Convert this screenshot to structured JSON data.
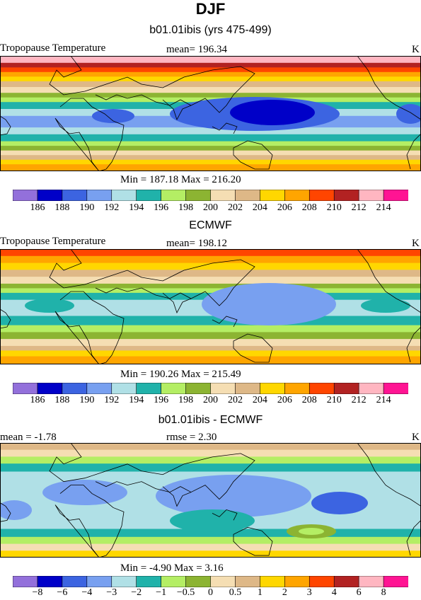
{
  "page": {
    "title": "DJF"
  },
  "colors": {
    "temp_scale": [
      "#9370db",
      "#0000c8",
      "#3c64e1",
      "#78a0f0",
      "#b0e0e6",
      "#20b2aa",
      "#b4ee64",
      "#8cb432",
      "#f5deb3",
      "#deb887",
      "#ffd700",
      "#ffa500",
      "#ff4500",
      "#b22222",
      "#ffb6c1",
      "#ff1493"
    ],
    "diff_scale": [
      "#9370db",
      "#0000c8",
      "#3c64e1",
      "#78a0f0",
      "#b0e0e6",
      "#20b2aa",
      "#b4ee64",
      "#8cb432",
      "#f5deb3",
      "#deb887",
      "#ffd700",
      "#ffa500",
      "#ff4500",
      "#b22222",
      "#ffb6c1",
      "#ff1493"
    ]
  },
  "chart_data": [
    {
      "type": "heatmap",
      "title": "b01.01ibis (yrs 475-499)",
      "left_label": "Tropopause Temperature",
      "mean_label": "mean= 196.34",
      "units": "K",
      "min_max_label": "Min = 187.18 Max = 216.20",
      "min": 187.18,
      "max": 216.2,
      "mean": 196.34,
      "levels": [
        186,
        188,
        190,
        192,
        194,
        196,
        198,
        200,
        202,
        204,
        206,
        208,
        210,
        212,
        214
      ],
      "level_labels": [
        "186",
        "188",
        "190",
        "192",
        "194",
        "196",
        "198",
        "200",
        "202",
        "204",
        "206",
        "208",
        "210",
        "212",
        "214"
      ]
    },
    {
      "type": "heatmap",
      "title": "ECMWF",
      "left_label": "Tropopause Temperature",
      "mean_label": "mean= 198.12",
      "units": "K",
      "min_max_label": "Min = 190.26 Max = 215.49",
      "min": 190.26,
      "max": 215.49,
      "mean": 198.12,
      "levels": [
        186,
        188,
        190,
        192,
        194,
        196,
        198,
        200,
        202,
        204,
        206,
        208,
        210,
        212,
        214
      ],
      "level_labels": [
        "186",
        "188",
        "190",
        "192",
        "194",
        "196",
        "198",
        "200",
        "202",
        "204",
        "206",
        "208",
        "210",
        "212",
        "214"
      ]
    },
    {
      "type": "heatmap",
      "title": "b01.01ibis - ECMWF",
      "left_label": "mean =   -1.78",
      "mean_label": "rmse =    2.30",
      "units": "K",
      "min_max_label": "Min =   -4.90 Max =    3.16",
      "min": -4.9,
      "max": 3.16,
      "mean": -1.78,
      "rmse": 2.3,
      "levels": [
        -8,
        -6,
        -4,
        -3,
        -2,
        -1,
        -0.5,
        0,
        0.5,
        1,
        2,
        3,
        4,
        6,
        8
      ],
      "level_labels": [
        "−8",
        "−6",
        "−4",
        "−3",
        "−2",
        "−1",
        "−0.5",
        "0",
        "0.5",
        "1",
        "2",
        "3",
        "4",
        "6",
        "8"
      ]
    }
  ]
}
